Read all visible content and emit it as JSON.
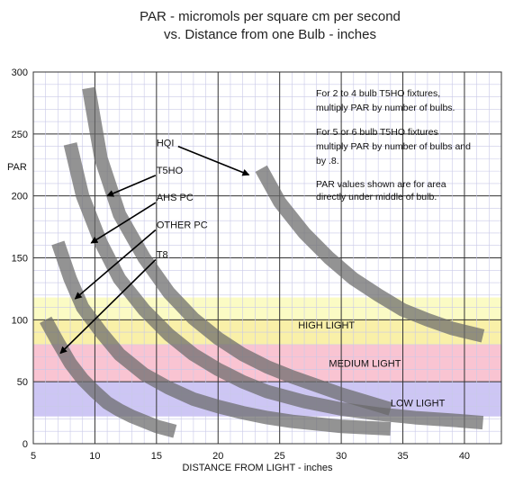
{
  "chart_data": {
    "type": "line",
    "title": "PAR - micromols per square cm per second",
    "subtitle": "vs. Distance from one Bulb - inches",
    "xlabel": "DISTANCE FROM LIGHT - inches",
    "ylabel": "PAR",
    "xlim": [
      5,
      43
    ],
    "ylim": [
      0,
      300
    ],
    "x_ticks": [
      "5",
      "10",
      "15",
      "20",
      "25",
      "30",
      "35",
      "40"
    ],
    "y_ticks": [
      "0",
      "50",
      "100",
      "150",
      "200",
      "250",
      "300"
    ],
    "grid": true,
    "bands": [
      {
        "label": "HIGH LIGHT",
        "y0": 100,
        "y1": 118,
        "color": "#fbfbc4",
        "label_x": 26.5,
        "label_y": 93
      },
      {
        "label": "HIGH LIGHT",
        "y0": 80,
        "y1": 100,
        "color": "#f9f0a8",
        "label_x": 26.5,
        "label_y": 93
      },
      {
        "label": "MEDIUM LIGHT",
        "y0": 50,
        "y1": 80,
        "color": "#f9c4d2",
        "label_x": 29,
        "label_y": 62
      },
      {
        "label": "LOW LIGHT",
        "y0": 22,
        "y1": 50,
        "color": "#cdc6f4",
        "label_x": 34,
        "label_y": 30
      }
    ],
    "series": [
      {
        "name": "HQI",
        "x": [
          23.5,
          25,
          27,
          29,
          31,
          33,
          35,
          37,
          39,
          41.5
        ],
        "y": [
          222,
          195,
          170,
          150,
          133,
          120,
          108,
          100,
          93,
          87
        ],
        "label_x": 15,
        "label_y": 240,
        "arrow_to": [
          22.5,
          217
        ]
      },
      {
        "name": "T5HO",
        "x": [
          9.5,
          10.5,
          12,
          14,
          16,
          18,
          20,
          22,
          24,
          26,
          28,
          30,
          32,
          34
        ],
        "y": [
          287,
          230,
          185,
          150,
          122,
          101,
          85,
          72,
          62,
          54,
          47,
          40,
          34,
          28
        ],
        "label_x": 15,
        "label_y": 218,
        "arrow_to": [
          11,
          200
        ]
      },
      {
        "name": "AHS PC",
        "x": [
          8,
          9,
          10.5,
          12,
          14,
          16,
          18,
          20,
          22,
          24,
          27,
          30,
          33,
          36,
          39,
          41.5
        ],
        "y": [
          242,
          200,
          162,
          133,
          108,
          88,
          72,
          60,
          50,
          42,
          34,
          28,
          24,
          21,
          19,
          17
        ],
        "label_x": 15,
        "label_y": 196,
        "arrow_to": [
          9.7,
          162
        ]
      },
      {
        "name": "OTHER PC",
        "x": [
          7,
          8,
          9,
          10.5,
          12,
          14,
          16,
          18,
          20,
          22,
          24,
          26,
          28,
          30,
          32,
          34
        ],
        "y": [
          162,
          133,
          110,
          90,
          72,
          56,
          45,
          36,
          30,
          25,
          21,
          18,
          16,
          14,
          13,
          12
        ],
        "label_x": 15,
        "label_y": 174,
        "arrow_to": [
          8.4,
          117
        ]
      },
      {
        "name": "T8",
        "x": [
          6,
          7,
          8,
          9,
          10,
          11,
          12,
          13,
          14,
          15,
          16.5
        ],
        "y": [
          100,
          82,
          65,
          52,
          42,
          33,
          27,
          22,
          18,
          14,
          10
        ],
        "label_x": 15,
        "label_y": 150,
        "arrow_to": [
          7.2,
          73
        ]
      }
    ],
    "annotations": [
      "For 2 to 4 bulb T5HO fixtures,",
      "multiply PAR by number of bulbs.",
      "For 5 or 6  bulb T5HO fixtures",
      "multiply PAR by number of bulbs and",
      "by .8.",
      "PAR values shown are for area",
      "directly under middle of bulb."
    ]
  }
}
